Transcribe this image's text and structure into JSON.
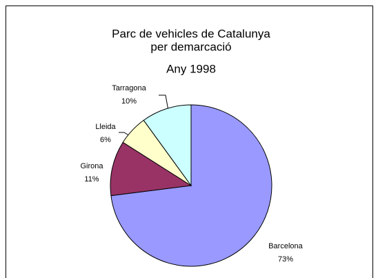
{
  "chart_data": {
    "type": "pie",
    "title": [
      "Parc de vehicles de Catalunya",
      "per demarcació",
      "Any 1998"
    ],
    "categories": [
      "Barcelona",
      "Girona",
      "Lleida",
      "Tarragona"
    ],
    "values": [
      73,
      11,
      6,
      10
    ],
    "value_labels": [
      "73%",
      "11%",
      "6%",
      "10%"
    ],
    "colors": [
      "#9999ff",
      "#993366",
      "#ffffcc",
      "#ccffff"
    ]
  }
}
